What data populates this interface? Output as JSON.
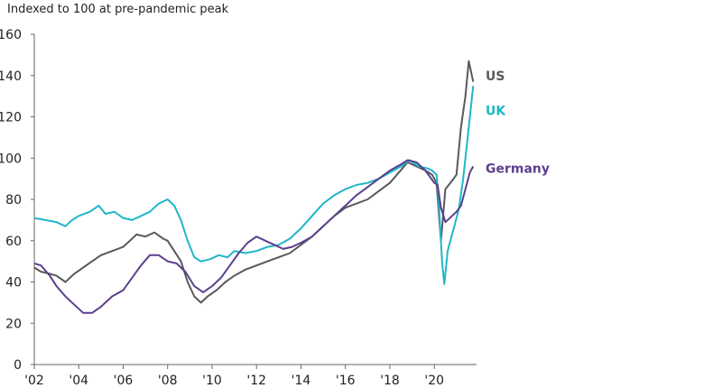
{
  "chart_data": {
    "type": "line",
    "title": "",
    "ylabel": "Indexed to 100 at pre-pandemic peak",
    "xlabel": "",
    "xlim": [
      2002,
      2021.9
    ],
    "ylim": [
      0,
      160
    ],
    "yticks": [
      0,
      20,
      40,
      60,
      80,
      100,
      120,
      140,
      160
    ],
    "xtick_values": [
      2002,
      2004,
      2006,
      2008,
      2010,
      2012,
      2014,
      2016,
      2018,
      2020
    ],
    "xtick_labels": [
      "'02",
      "'04",
      "'06",
      "'08",
      "'10",
      "'12",
      "'14",
      "'16",
      "'18",
      "'20"
    ],
    "grid": false,
    "legend": "inline labels at right end of lines",
    "series": [
      {
        "name": "US",
        "color": "#58595b",
        "points": [
          [
            2002.0,
            47
          ],
          [
            2002.3,
            45
          ],
          [
            2002.7,
            44
          ],
          [
            2003.0,
            43
          ],
          [
            2003.4,
            40
          ],
          [
            2003.8,
            44
          ],
          [
            2004.2,
            47
          ],
          [
            2004.6,
            50
          ],
          [
            2005.0,
            53
          ],
          [
            2005.5,
            55
          ],
          [
            2006.0,
            57
          ],
          [
            2006.3,
            60
          ],
          [
            2006.6,
            63
          ],
          [
            2007.0,
            62
          ],
          [
            2007.4,
            64
          ],
          [
            2007.8,
            61
          ],
          [
            2008.0,
            60
          ],
          [
            2008.3,
            55
          ],
          [
            2008.6,
            50
          ],
          [
            2008.9,
            40
          ],
          [
            2009.2,
            33
          ],
          [
            2009.5,
            30
          ],
          [
            2009.8,
            33
          ],
          [
            2010.2,
            36
          ],
          [
            2010.6,
            40
          ],
          [
            2011.0,
            43
          ],
          [
            2011.5,
            46
          ],
          [
            2012.0,
            48
          ],
          [
            2012.5,
            50
          ],
          [
            2013.0,
            52
          ],
          [
            2013.5,
            54
          ],
          [
            2014.0,
            58
          ],
          [
            2014.5,
            62
          ],
          [
            2015.0,
            67
          ],
          [
            2015.5,
            72
          ],
          [
            2016.0,
            76
          ],
          [
            2016.5,
            78
          ],
          [
            2017.0,
            80
          ],
          [
            2017.5,
            84
          ],
          [
            2018.0,
            88
          ],
          [
            2018.4,
            93
          ],
          [
            2018.8,
            98
          ],
          [
            2019.2,
            96
          ],
          [
            2019.6,
            94
          ],
          [
            2019.9,
            92
          ],
          [
            2020.1,
            88
          ],
          [
            2020.3,
            60
          ],
          [
            2020.5,
            85
          ],
          [
            2020.8,
            89
          ],
          [
            2021.0,
            92
          ],
          [
            2021.2,
            115
          ],
          [
            2021.4,
            130
          ],
          [
            2021.55,
            147
          ],
          [
            2021.75,
            137
          ]
        ]
      },
      {
        "name": "UK",
        "color": "#1fb6c9",
        "points": [
          [
            2002.0,
            71
          ],
          [
            2002.5,
            70
          ],
          [
            2003.0,
            69
          ],
          [
            2003.4,
            67
          ],
          [
            2003.7,
            70
          ],
          [
            2004.0,
            72
          ],
          [
            2004.5,
            74
          ],
          [
            2004.9,
            77
          ],
          [
            2005.2,
            73
          ],
          [
            2005.6,
            74
          ],
          [
            2006.0,
            71
          ],
          [
            2006.4,
            70
          ],
          [
            2006.8,
            72
          ],
          [
            2007.2,
            74
          ],
          [
            2007.6,
            78
          ],
          [
            2008.0,
            80
          ],
          [
            2008.3,
            77
          ],
          [
            2008.6,
            70
          ],
          [
            2008.9,
            60
          ],
          [
            2009.2,
            52
          ],
          [
            2009.5,
            50
          ],
          [
            2009.9,
            51
          ],
          [
            2010.3,
            53
          ],
          [
            2010.7,
            52
          ],
          [
            2011.0,
            55
          ],
          [
            2011.5,
            54
          ],
          [
            2012.0,
            55
          ],
          [
            2012.5,
            57
          ],
          [
            2013.0,
            58
          ],
          [
            2013.5,
            61
          ],
          [
            2014.0,
            66
          ],
          [
            2014.5,
            72
          ],
          [
            2015.0,
            78
          ],
          [
            2015.5,
            82
          ],
          [
            2016.0,
            85
          ],
          [
            2016.5,
            87
          ],
          [
            2017.0,
            88
          ],
          [
            2017.5,
            90
          ],
          [
            2018.0,
            93
          ],
          [
            2018.5,
            96
          ],
          [
            2018.9,
            99
          ],
          [
            2019.3,
            96
          ],
          [
            2019.7,
            95
          ],
          [
            2019.9,
            94
          ],
          [
            2020.1,
            92
          ],
          [
            2020.2,
            80
          ],
          [
            2020.35,
            50
          ],
          [
            2020.45,
            39
          ],
          [
            2020.6,
            55
          ],
          [
            2020.9,
            67
          ],
          [
            2021.1,
            75
          ],
          [
            2021.3,
            90
          ],
          [
            2021.5,
            110
          ],
          [
            2021.75,
            135
          ]
        ]
      },
      {
        "name": "Germany",
        "color": "#5b3f8c",
        "points": [
          [
            2002.0,
            49
          ],
          [
            2002.3,
            48
          ],
          [
            2002.7,
            43
          ],
          [
            2003.0,
            38
          ],
          [
            2003.4,
            33
          ],
          [
            2003.8,
            29
          ],
          [
            2004.2,
            25
          ],
          [
            2004.6,
            25
          ],
          [
            2005.0,
            28
          ],
          [
            2005.5,
            33
          ],
          [
            2006.0,
            36
          ],
          [
            2006.4,
            42
          ],
          [
            2006.8,
            48
          ],
          [
            2007.2,
            53
          ],
          [
            2007.6,
            53
          ],
          [
            2008.0,
            50
          ],
          [
            2008.4,
            49
          ],
          [
            2008.8,
            45
          ],
          [
            2009.2,
            38
          ],
          [
            2009.6,
            35
          ],
          [
            2010.0,
            38
          ],
          [
            2010.4,
            42
          ],
          [
            2010.8,
            48
          ],
          [
            2011.2,
            54
          ],
          [
            2011.6,
            59
          ],
          [
            2012.0,
            62
          ],
          [
            2012.4,
            60
          ],
          [
            2012.8,
            58
          ],
          [
            2013.2,
            56
          ],
          [
            2013.6,
            57
          ],
          [
            2014.0,
            59
          ],
          [
            2014.5,
            62
          ],
          [
            2015.0,
            67
          ],
          [
            2015.5,
            72
          ],
          [
            2016.0,
            77
          ],
          [
            2016.5,
            82
          ],
          [
            2017.0,
            86
          ],
          [
            2017.5,
            90
          ],
          [
            2018.0,
            94
          ],
          [
            2018.5,
            97
          ],
          [
            2018.8,
            99
          ],
          [
            2019.2,
            98
          ],
          [
            2019.6,
            94
          ],
          [
            2020.0,
            88
          ],
          [
            2020.15,
            87
          ],
          [
            2020.3,
            76
          ],
          [
            2020.5,
            69
          ],
          [
            2020.8,
            72
          ],
          [
            2021.0,
            74
          ],
          [
            2021.2,
            77
          ],
          [
            2021.4,
            85
          ],
          [
            2021.6,
            93
          ],
          [
            2021.75,
            96
          ]
        ]
      }
    ]
  }
}
